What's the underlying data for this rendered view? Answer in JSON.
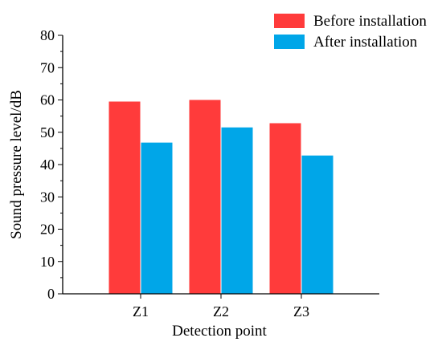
{
  "chart_data": {
    "type": "bar",
    "title": "",
    "xlabel": "Detection point",
    "ylabel": "Sound pressure level/dB",
    "categories": [
      "Z1",
      "Z2",
      "Z3"
    ],
    "series": [
      {
        "name": "Before installation",
        "values": [
          59.5,
          60.0,
          52.8
        ],
        "color": "#ff3b3b"
      },
      {
        "name": "After installation",
        "values": [
          46.8,
          51.5,
          42.8
        ],
        "color": "#00a6e8"
      }
    ],
    "ylim": [
      0,
      80
    ],
    "yticks": [
      0,
      10,
      20,
      30,
      40,
      50,
      60,
      70,
      80
    ],
    "grid": false,
    "legend_position": "top-right"
  }
}
